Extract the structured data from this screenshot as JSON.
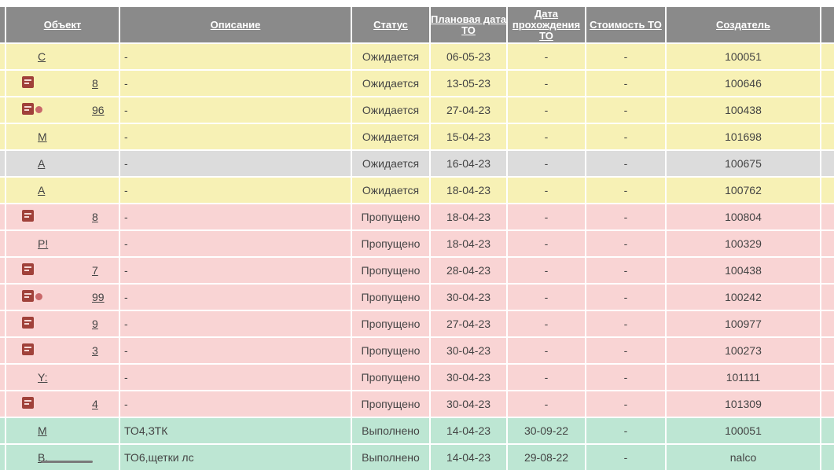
{
  "headers": {
    "object": "Объект",
    "description": "Описание",
    "status": "Статус",
    "planned_date": "Плановая дата ТО",
    "pass_date": "Дата прохождения ТО",
    "cost": "Стоимость ТО",
    "creator": "Создатель"
  },
  "rows": [
    {
      "obj1": "С",
      "obj2": "",
      "desc": "-",
      "status": "Ожидается",
      "planned": "06-05-23",
      "passed": "-",
      "cost": "-",
      "creator": "100051",
      "color": "#f7f1b5"
    },
    {
      "obj1": "",
      "obj2": "8",
      "desc": "-",
      "status": "Ожидается",
      "planned": "13-05-23",
      "passed": "-",
      "cost": "-",
      "creator": "100646",
      "color": "#f7f1b5"
    },
    {
      "obj1": "",
      "obj2": "96",
      "desc": "-",
      "status": "Ожидается",
      "planned": "27-04-23",
      "passed": "-",
      "cost": "-",
      "creator": "100438",
      "color": "#f7f1b5"
    },
    {
      "obj1": "М",
      "obj2": "",
      "desc": "-",
      "status": "Ожидается",
      "planned": "15-04-23",
      "passed": "-",
      "cost": "-",
      "creator": "101698",
      "color": "#f7f1b5"
    },
    {
      "obj1": "А",
      "obj2": "",
      "desc": "-",
      "status": "Ожидается",
      "planned": "16-04-23",
      "passed": "-",
      "cost": "-",
      "creator": "100675",
      "color": "#dcdcdc"
    },
    {
      "obj1": "А",
      "obj2": "",
      "desc": "-",
      "status": "Ожидается",
      "planned": "18-04-23",
      "passed": "-",
      "cost": "-",
      "creator": "100762",
      "color": "#f7f1b5"
    },
    {
      "obj1": "",
      "obj2": "8",
      "desc": "-",
      "status": "Пропущено",
      "planned": "18-04-23",
      "passed": "-",
      "cost": "-",
      "creator": "100804",
      "color": "#f9d4d4"
    },
    {
      "obj1": "Р!",
      "obj2": "",
      "desc": "-",
      "status": "Пропущено",
      "planned": "18-04-23",
      "passed": "-",
      "cost": "-",
      "creator": "100329",
      "color": "#f9d4d4"
    },
    {
      "obj1": "",
      "obj2": "7",
      "desc": "-",
      "status": "Пропущено",
      "planned": "28-04-23",
      "passed": "-",
      "cost": "-",
      "creator": "100438",
      "color": "#f9d4d4"
    },
    {
      "obj1": "",
      "obj2": "99",
      "desc": "-",
      "status": "Пропущено",
      "planned": "30-04-23",
      "passed": "-",
      "cost": "-",
      "creator": "100242",
      "color": "#f9d4d4"
    },
    {
      "obj1": "",
      "obj2": "9",
      "desc": "-",
      "status": "Пропущено",
      "planned": "27-04-23",
      "passed": "-",
      "cost": "-",
      "creator": "100977",
      "color": "#f9d4d4"
    },
    {
      "obj1": "",
      "obj2": "3",
      "desc": "-",
      "status": "Пропущено",
      "planned": "30-04-23",
      "passed": "-",
      "cost": "-",
      "creator": "100273",
      "color": "#f9d4d4"
    },
    {
      "obj1": "Y:",
      "obj2": "",
      "desc": "-",
      "status": "Пропущено",
      "planned": "30-04-23",
      "passed": "-",
      "cost": "-",
      "creator": "101111",
      "color": "#f9d4d4"
    },
    {
      "obj1": "",
      "obj2": "4",
      "desc": "-",
      "status": "Пропущено",
      "planned": "30-04-23",
      "passed": "-",
      "cost": "-",
      "creator": "101309",
      "color": "#f9d4d4"
    },
    {
      "obj1": "М",
      "obj2": "",
      "desc": "ТО4,ЗТК",
      "status": "Выполнено",
      "planned": "14-04-23",
      "passed": "30-09-22",
      "cost": "-",
      "creator": "100051",
      "color": "#bde6d3"
    },
    {
      "obj1": "В.",
      "obj2": "",
      "desc": "ТО6,щетки лс",
      "status": "Выполнено",
      "planned": "14-04-23",
      "passed": "29-08-22",
      "cost": "-",
      "creator": "nalco",
      "color": "#bde6d3"
    }
  ],
  "row_icons": [
    {
      "doc": false,
      "extra": false
    },
    {
      "doc": true,
      "extra": false
    },
    {
      "doc": true,
      "extra": true
    },
    {
      "doc": false,
      "extra": false
    },
    {
      "doc": false,
      "extra": false
    },
    {
      "doc": false,
      "extra": false
    },
    {
      "doc": true,
      "extra": false
    },
    {
      "doc": false,
      "extra": false
    },
    {
      "doc": true,
      "extra": false
    },
    {
      "doc": true,
      "extra": true
    },
    {
      "doc": true,
      "extra": false
    },
    {
      "doc": true,
      "extra": false
    },
    {
      "doc": false,
      "extra": false
    },
    {
      "doc": true,
      "extra": false
    },
    {
      "doc": false,
      "extra": false
    },
    {
      "doc": false,
      "extra": false
    }
  ]
}
